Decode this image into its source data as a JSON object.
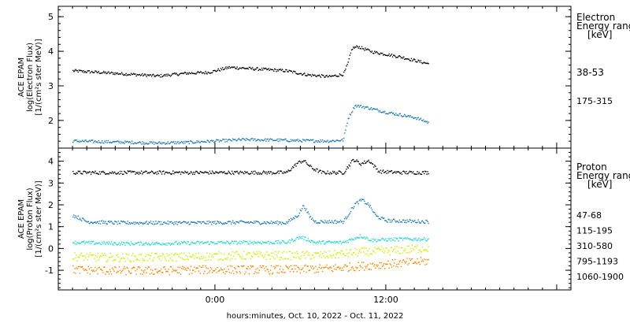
{
  "xlabel": "hours:minutes, Oct. 10, 2022 - Oct. 11, 2022",
  "x_tick_labels": [
    "0:00",
    "12:00"
  ],
  "chart_data": [
    {
      "type": "scatter",
      "panel": "electron",
      "ylabel": [
        "ACE EPAM",
        "log(Electron Flux)",
        "[1/(cm²s ster MeV)]"
      ],
      "ylim": [
        1.2,
        5.3
      ],
      "yticks": [
        2,
        3,
        4,
        5
      ],
      "xlim_hours": [
        -11,
        25
      ],
      "legend_title": [
        "Electron",
        "Energy ranges",
        "[keV]"
      ],
      "series": [
        {
          "name": "38-53",
          "color": "#000000",
          "x": [
            -10.0,
            -8.0,
            -6.0,
            -4.0,
            -2.0,
            -0.5,
            0.0,
            1.0,
            3.0,
            5.0,
            6.5,
            8.0,
            9.0,
            9.3,
            9.6,
            10.0,
            11.0,
            13.0,
            15.0
          ],
          "y": [
            3.45,
            3.4,
            3.35,
            3.3,
            3.38,
            3.4,
            3.45,
            3.55,
            3.5,
            3.45,
            3.33,
            3.28,
            3.35,
            3.65,
            4.1,
            4.15,
            4.0,
            3.85,
            3.65
          ]
        },
        {
          "name": "175-315",
          "color": "#1f78b4",
          "x": [
            -10.0,
            -8.0,
            -6.0,
            -4.0,
            -2.0,
            0.0,
            2.0,
            4.0,
            6.0,
            8.0,
            9.0,
            9.3,
            9.8,
            10.5,
            12.0,
            14.0,
            15.0
          ],
          "y": [
            1.42,
            1.4,
            1.38,
            1.36,
            1.38,
            1.42,
            1.46,
            1.45,
            1.43,
            1.42,
            1.45,
            2.05,
            2.45,
            2.4,
            2.25,
            2.1,
            1.95
          ]
        }
      ]
    },
    {
      "type": "scatter",
      "panel": "proton",
      "ylabel": [
        "ACE EPAM",
        "log(Proton Flux)",
        "[1/(cm²s ster MeV)]"
      ],
      "ylim": [
        -1.9,
        4.6
      ],
      "yticks": [
        -1,
        0,
        1,
        2,
        3,
        4
      ],
      "xlim_hours": [
        -11,
        25
      ],
      "legend_title": [
        "Proton",
        "Energy ranges",
        "[keV]"
      ],
      "series": [
        {
          "name": "47-68",
          "color": "#000000",
          "x": [
            -10.0,
            -7.0,
            -4.0,
            -1.0,
            2.0,
            5.0,
            5.8,
            6.2,
            6.8,
            7.5,
            9.0,
            9.7,
            10.2,
            10.8,
            11.5,
            13.0,
            15.0
          ],
          "y": [
            3.5,
            3.5,
            3.5,
            3.5,
            3.5,
            3.5,
            3.95,
            4.05,
            3.7,
            3.5,
            3.5,
            4.1,
            3.9,
            4.05,
            3.55,
            3.5,
            3.5
          ]
        },
        {
          "name": "115-195",
          "color": "#1f78b4",
          "x": [
            -10.0,
            -9.0,
            -7.0,
            -4.0,
            -1.0,
            2.0,
            5.0,
            5.8,
            6.2,
            6.6,
            7.0,
            9.0,
            9.8,
            10.3,
            10.8,
            11.3,
            12.0,
            15.0
          ],
          "y": [
            1.55,
            1.25,
            1.2,
            1.2,
            1.2,
            1.22,
            1.2,
            1.55,
            2.0,
            1.5,
            1.25,
            1.25,
            2.05,
            2.25,
            2.0,
            1.5,
            1.3,
            1.25
          ]
        },
        {
          "name": "310-580",
          "color": "#22d3d3",
          "x": [
            -10.0,
            -7.0,
            -4.0,
            -1.0,
            2.0,
            5.0,
            6.0,
            7.0,
            9.0,
            10.2,
            11.0,
            13.0,
            15.0
          ],
          "y": [
            0.3,
            0.25,
            0.25,
            0.28,
            0.3,
            0.3,
            0.55,
            0.3,
            0.3,
            0.6,
            0.4,
            0.45,
            0.45
          ]
        },
        {
          "name": "795-1193",
          "color": "#d4e600",
          "x": [
            -10.0,
            -7.0,
            -4.0,
            -1.0,
            2.0,
            5.0,
            8.0,
            10.0,
            12.0,
            15.0
          ],
          "y": [
            -0.35,
            -0.4,
            -0.38,
            -0.35,
            -0.3,
            -0.3,
            -0.28,
            -0.15,
            -0.1,
            0.05
          ]
        },
        {
          "name": "1060-1900",
          "color": "#f28500",
          "x": [
            -10.0,
            -7.0,
            -4.0,
            -1.0,
            2.0,
            5.0,
            8.0,
            10.0,
            12.0,
            15.0
          ],
          "y": [
            -0.95,
            -1.0,
            -1.0,
            -0.95,
            -0.95,
            -0.95,
            -0.9,
            -0.8,
            -0.7,
            -0.55
          ]
        }
      ]
    }
  ]
}
